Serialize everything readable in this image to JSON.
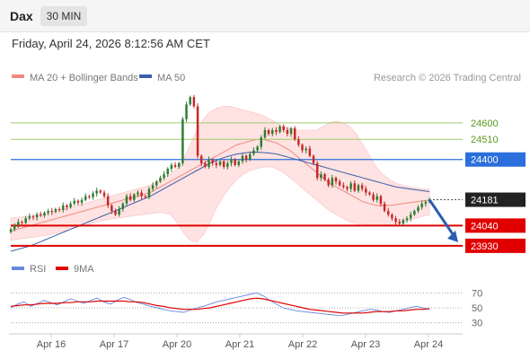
{
  "header": {
    "symbol": "Dax",
    "timeframe": "30 MIN",
    "datetime": "Friday, April 24, 2026 8:12:56 AM CET"
  },
  "legend": {
    "ma20_label": "MA 20 + Bollinger Bands",
    "ma50_label": "MA 50",
    "copyright": "Research © 2026 Trading Central"
  },
  "colors": {
    "candle_up": "#2e7d32",
    "candle_down": "#c62828",
    "ma20": "#f08a80",
    "ma50": "#3a5fa8",
    "bollinger": "#ffd6d6",
    "support": "#e00000",
    "pivot": "#2a6fdb",
    "resistance": "#9ecb6b",
    "rsi": "#6688dd",
    "rsi_ma": "#e00000"
  },
  "chart_data": [
    {
      "type": "candlestick",
      "title": "",
      "x_labels": [
        "Apr 16",
        "Apr 17",
        "Apr 20",
        "Apr 21",
        "Apr 22",
        "Apr 23",
        "Apr 24"
      ],
      "ylim": [
        23900,
        24780
      ],
      "last_price": 24181,
      "levels": [
        {
          "value": 24600,
          "label": "24600",
          "kind": "resistance"
        },
        {
          "value": 24510,
          "label": "24510",
          "kind": "resistance"
        },
        {
          "value": 24400,
          "label": "24400",
          "kind": "pivot"
        },
        {
          "value": 24181,
          "label": "24181",
          "kind": "last"
        },
        {
          "value": 24040,
          "label": "24040",
          "kind": "support"
        },
        {
          "value": 23930,
          "label": "23930",
          "kind": "support"
        }
      ],
      "closes": [
        24020,
        24040,
        24060,
        24055,
        24080,
        24090,
        24085,
        24100,
        24095,
        24110,
        24120,
        24115,
        24130,
        24125,
        24150,
        24140,
        24160,
        24175,
        24165,
        24180,
        24200,
        24195,
        24215,
        24230,
        24220,
        24200,
        24150,
        24120,
        24100,
        24130,
        24160,
        24200,
        24180,
        24210,
        24220,
        24200,
        24195,
        24240,
        24260,
        24280,
        24300,
        24320,
        24350,
        24370,
        24360,
        24380,
        24620,
        24700,
        24740,
        24690,
        24420,
        24380,
        24360,
        24400,
        24380,
        24370,
        24390,
        24360,
        24380,
        24400,
        24370,
        24390,
        24420,
        24400,
        24430,
        24450,
        24470,
        24520,
        24560,
        24540,
        24560,
        24550,
        24580,
        24560,
        24540,
        24570,
        24510,
        24480,
        24450,
        24460,
        24420,
        24380,
        24300,
        24320,
        24290,
        24260,
        24300,
        24280,
        24260,
        24250,
        24240,
        24270,
        24230,
        24260,
        24240,
        24220,
        24210,
        24180,
        24200,
        24160,
        24120,
        24100,
        24080,
        24060,
        24050,
        24070,
        24080,
        24100,
        24120,
        24140,
        24160,
        24170,
        24181
      ],
      "bb_upper": [
        24080,
        24085,
        24090,
        24095,
        24100,
        24105,
        24110,
        24120,
        24130,
        24140,
        24150,
        24160,
        24170,
        24180,
        24190,
        24200,
        24210,
        24220,
        24230,
        24240,
        24250,
        24260,
        24280,
        24300,
        24320,
        24350,
        24400,
        24480,
        24560,
        24620,
        24660,
        24680,
        24690,
        24690,
        24680,
        24670,
        24660,
        24650,
        24640,
        24620,
        24600,
        24580,
        24570,
        24560,
        24560,
        24560,
        24560,
        24580,
        24600,
        24610,
        24600,
        24580,
        24540,
        24480,
        24420,
        24360,
        24320,
        24290,
        24270,
        24260,
        24250,
        24245,
        24240,
        24240
      ],
      "bb_lower": [
        23960,
        23965,
        23970,
        23975,
        23980,
        23985,
        23990,
        24000,
        24010,
        24020,
        24030,
        24040,
        24050,
        24060,
        24070,
        24075,
        24080,
        24085,
        24090,
        24095,
        24100,
        24105,
        24110,
        24110,
        24100,
        24060,
        24000,
        23960,
        23950,
        23990,
        24060,
        24140,
        24200,
        24250,
        24290,
        24320,
        24340,
        24350,
        24360,
        24360,
        24350,
        24330,
        24300,
        24270,
        24240,
        24210,
        24180,
        24150,
        24120,
        24100,
        24080,
        24060,
        24050,
        24050,
        24040,
        24040,
        24040,
        24045,
        24050,
        24060,
        24070,
        24080,
        24090,
        24100
      ],
      "ma20": [
        24010,
        24020,
        24030,
        24040,
        24050,
        24060,
        24070,
        24080,
        24090,
        24100,
        24110,
        24120,
        24130,
        24140,
        24150,
        24160,
        24170,
        24180,
        24190,
        24200,
        24210,
        24220,
        24240,
        24260,
        24280,
        24300,
        24320,
        24340,
        24360,
        24380,
        24400,
        24420,
        24440,
        24460,
        24480,
        24490,
        24500,
        24510,
        24510,
        24500,
        24490,
        24470,
        24450,
        24420,
        24390,
        24360,
        24330,
        24300,
        24270,
        24250,
        24230,
        24210,
        24190,
        24170,
        24160,
        24150,
        24150,
        24150,
        24155,
        24160,
        24165,
        24170,
        24175,
        24180
      ],
      "ma50": [
        23900,
        23910,
        23920,
        23930,
        23945,
        23960,
        23975,
        23990,
        24005,
        24020,
        24035,
        24050,
        24065,
        24080,
        24095,
        24110,
        24125,
        24140,
        24155,
        24170,
        24185,
        24200,
        24220,
        24240,
        24260,
        24280,
        24300,
        24320,
        24340,
        24360,
        24380,
        24395,
        24410,
        24420,
        24430,
        24435,
        24440,
        24440,
        24438,
        24435,
        24430,
        24420,
        24410,
        24400,
        24390,
        24380,
        24370,
        24360,
        24350,
        24340,
        24330,
        24320,
        24310,
        24300,
        24290,
        24280,
        24270,
        24260,
        24250,
        24245,
        24240,
        24235,
        24230,
        24225
      ]
    },
    {
      "type": "line",
      "title": "",
      "series": [
        {
          "name": "RSI",
          "values": [
            50,
            55,
            58,
            52,
            56,
            60,
            57,
            54,
            58,
            62,
            59,
            56,
            60,
            63,
            58,
            55,
            60,
            64,
            61,
            57,
            55,
            52,
            50,
            48,
            46,
            45,
            44,
            47,
            50,
            52,
            55,
            58,
            60,
            62,
            64,
            66,
            68,
            70,
            66,
            60,
            55,
            50,
            48,
            46,
            45,
            44,
            43,
            42,
            41,
            40,
            40,
            42,
            44,
            46,
            48,
            47,
            45,
            44,
            46,
            48,
            50,
            52,
            50,
            48
          ]
        },
        {
          "name": "9MA",
          "values": [
            52,
            53,
            54,
            54,
            55,
            56,
            56,
            56,
            57,
            57,
            58,
            58,
            58,
            59,
            59,
            59,
            59,
            59,
            58,
            58,
            57,
            55,
            53,
            52,
            50,
            49,
            48,
            48,
            48,
            49,
            50,
            52,
            54,
            56,
            58,
            60,
            62,
            63,
            62,
            60,
            58,
            56,
            54,
            52,
            50,
            48,
            47,
            46,
            45,
            44,
            43,
            43,
            43,
            43,
            44,
            45,
            45,
            45,
            46,
            46,
            47,
            48,
            48,
            49
          ]
        }
      ],
      "yticks": [
        70,
        50,
        30
      ],
      "ylim": [
        20,
        80
      ]
    }
  ]
}
